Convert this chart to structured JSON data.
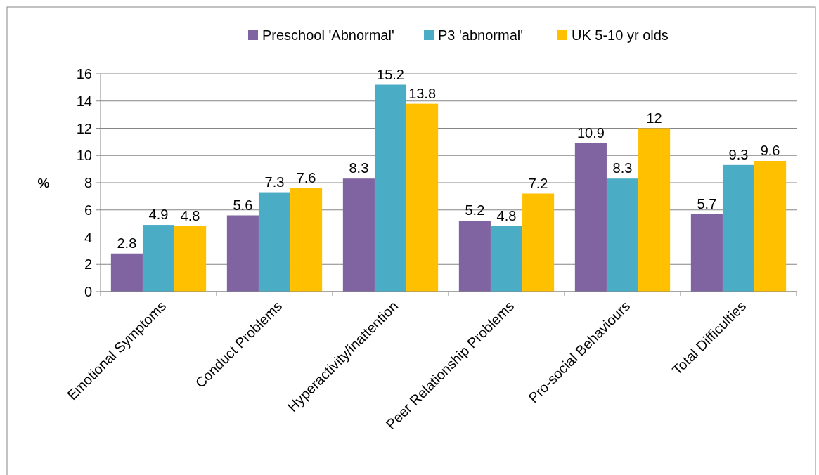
{
  "chart_data": {
    "type": "bar",
    "ylabel": "%",
    "categories": [
      "Emotional Symptoms",
      "Conduct Problems",
      "Hyperactivity/inattention",
      "Peer Relationship Problems",
      "Pro-social Behaviours",
      "Total Difficulties"
    ],
    "series": [
      {
        "name": "Preschool 'Abnormal'",
        "color": "#8064a2",
        "values": [
          2.8,
          5.6,
          8.3,
          5.2,
          10.9,
          5.7
        ]
      },
      {
        "name": "P3 'abnormal'",
        "color": "#4bacc6",
        "values": [
          4.9,
          7.3,
          15.2,
          4.8,
          8.3,
          9.3
        ]
      },
      {
        "name": "UK 5-10 yr olds",
        "color": "#ffc000",
        "values": [
          4.8,
          7.6,
          13.8,
          7.2,
          12,
          9.6
        ]
      }
    ],
    "ylim": [
      0,
      16
    ],
    "yticks": [
      0,
      2,
      4,
      6,
      8,
      10,
      12,
      14,
      16
    ],
    "grid": "y",
    "legend": "top",
    "data_labels": true
  }
}
